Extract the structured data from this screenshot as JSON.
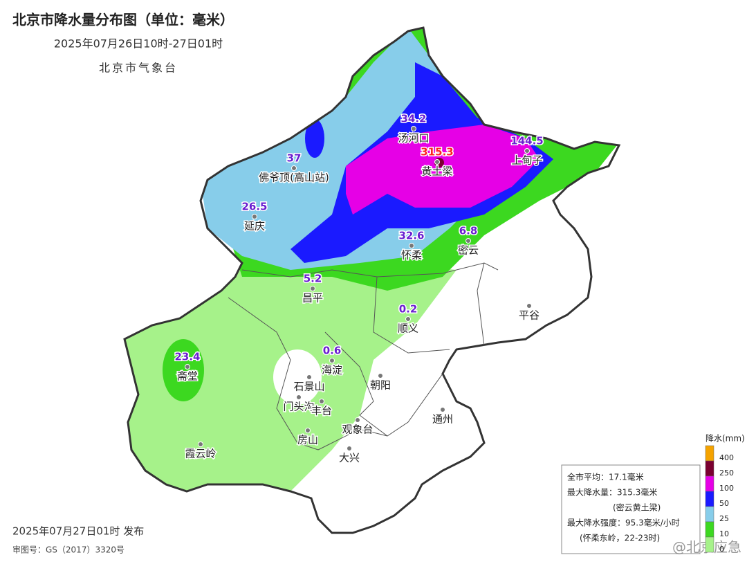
{
  "header": {
    "title": "北京市降水量分布图（单位：毫米）",
    "subtitle": "2025年07月26日10时-27日01时",
    "agency": "北京市气象台"
  },
  "stations": [
    {
      "name": "汤河口",
      "value": 34.2,
      "color": "#6a1fd0"
    },
    {
      "name": "黄土梁",
      "value": 315.3,
      "color": "#ff2020"
    },
    {
      "name": "上甸子",
      "value": 144.5,
      "color": "#6a1fd0"
    },
    {
      "name": "佛爷顶(高山站)",
      "value": 37,
      "color": "#6a1fd0"
    },
    {
      "name": "延庆",
      "value": 26.5,
      "color": "#6a1fd0"
    },
    {
      "name": "怀柔",
      "value": 32.6,
      "color": "#6a1fd0"
    },
    {
      "name": "密云",
      "value": 6.8,
      "color": "#6a1fd0"
    },
    {
      "name": "昌平",
      "value": 5.2,
      "color": "#6a1fd0"
    },
    {
      "name": "顺义",
      "value": 0.2,
      "color": "#6a1fd0"
    },
    {
      "name": "海淀",
      "value": 0.6,
      "color": "#6a1fd0"
    },
    {
      "name": "斋堂",
      "value": 23.4,
      "color": "#6a1fd0"
    }
  ],
  "places": [
    "石景山",
    "门头沟",
    "丰台",
    "朝阳",
    "房山",
    "观象台",
    "大兴",
    "通州",
    "平谷",
    "霞云岭"
  ],
  "legend": {
    "title": "降水(mm)",
    "levels": [
      {
        "label": 400,
        "color": "#f5a300"
      },
      {
        "label": 250,
        "color": "#7a0030"
      },
      {
        "label": 100,
        "color": "#e600e6"
      },
      {
        "label": 50,
        "color": "#1a1aff"
      },
      {
        "label": 25,
        "color": "#87cdea"
      },
      {
        "label": 10,
        "color": "#3cd820"
      },
      {
        "label": 0,
        "color": "#a6f28a"
      }
    ]
  },
  "info": {
    "lines": [
      "全市平均：17.1毫米",
      "最大降水量：315.3毫米",
      "(密云黄土梁)",
      "最大降水强度：95.3毫米/小时",
      "(怀柔东岭，22-23时)"
    ]
  },
  "footer": {
    "published": "2025年07月27日01时 发布",
    "review": "审图号：GS（2017）3320号"
  },
  "watermark": "@北京应急"
}
